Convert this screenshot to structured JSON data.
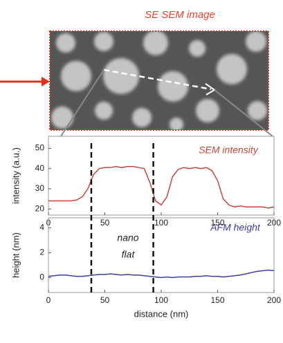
{
  "image": {
    "title": "SE SEM image"
  },
  "chart_data": [
    {
      "type": "line",
      "x": [
        0,
        5,
        10,
        15,
        20,
        25,
        30,
        35,
        40,
        45,
        50,
        55,
        60,
        65,
        70,
        75,
        80,
        85,
        90,
        95,
        100,
        105,
        110,
        115,
        120,
        125,
        130,
        135,
        140,
        145,
        150,
        155,
        160,
        165,
        170,
        175,
        180,
        185,
        190,
        195,
        200
      ],
      "series": [
        {
          "name": "SEM intensity",
          "color": "#c8463c",
          "values": [
            24,
            24,
            24,
            24,
            24,
            24.5,
            26,
            30,
            37,
            40,
            40.5,
            40.5,
            41,
            40.5,
            41,
            41,
            40.5,
            40,
            33,
            24,
            22,
            26,
            36,
            39.5,
            40.5,
            40,
            40.5,
            40,
            40.5,
            39,
            34,
            25,
            22,
            21,
            21.5,
            21,
            21,
            21,
            21,
            20.5,
            21
          ]
        }
      ],
      "xlim": [
        0,
        200
      ],
      "xticks": [
        0,
        50,
        100,
        150,
        200
      ],
      "ylim": [
        17,
        56
      ],
      "yticks": [
        20,
        30,
        40,
        50
      ],
      "ylabel": "intensity (a.u.)",
      "vlines": [
        38,
        93
      ]
    },
    {
      "type": "line",
      "x": [
        0,
        5,
        10,
        15,
        20,
        25,
        30,
        35,
        40,
        45,
        50,
        55,
        60,
        65,
        70,
        75,
        80,
        85,
        90,
        95,
        100,
        105,
        110,
        115,
        120,
        125,
        130,
        135,
        140,
        145,
        150,
        155,
        160,
        165,
        170,
        175,
        180,
        185,
        190,
        195,
        200
      ],
      "series": [
        {
          "name": "AFM height",
          "color": "#3a3aa8",
          "values": [
            0.1,
            0.15,
            0.2,
            0.2,
            0.15,
            0.1,
            0.1,
            0.15,
            0.2,
            0.25,
            0.25,
            0.3,
            0.25,
            0.2,
            0.25,
            0.2,
            0.2,
            0.15,
            0.1,
            0.05,
            0,
            0.05,
            0,
            0.05,
            0.05,
            0.05,
            0.1,
            0.1,
            0.15,
            0.1,
            0.1,
            0.05,
            0.1,
            0.15,
            0.2,
            0.3,
            0.4,
            0.5,
            0.55,
            0.6,
            0.55
          ]
        }
      ],
      "xlim": [
        0,
        200
      ],
      "xticks": [
        0,
        50,
        100,
        150,
        200
      ],
      "ylim": [
        -1.2,
        4.8
      ],
      "yticks": [
        0,
        2,
        4
      ],
      "ylabel": "height (nm)",
      "xlabel": "distance (nm)",
      "annotation": [
        "nano",
        "flat"
      ]
    }
  ]
}
